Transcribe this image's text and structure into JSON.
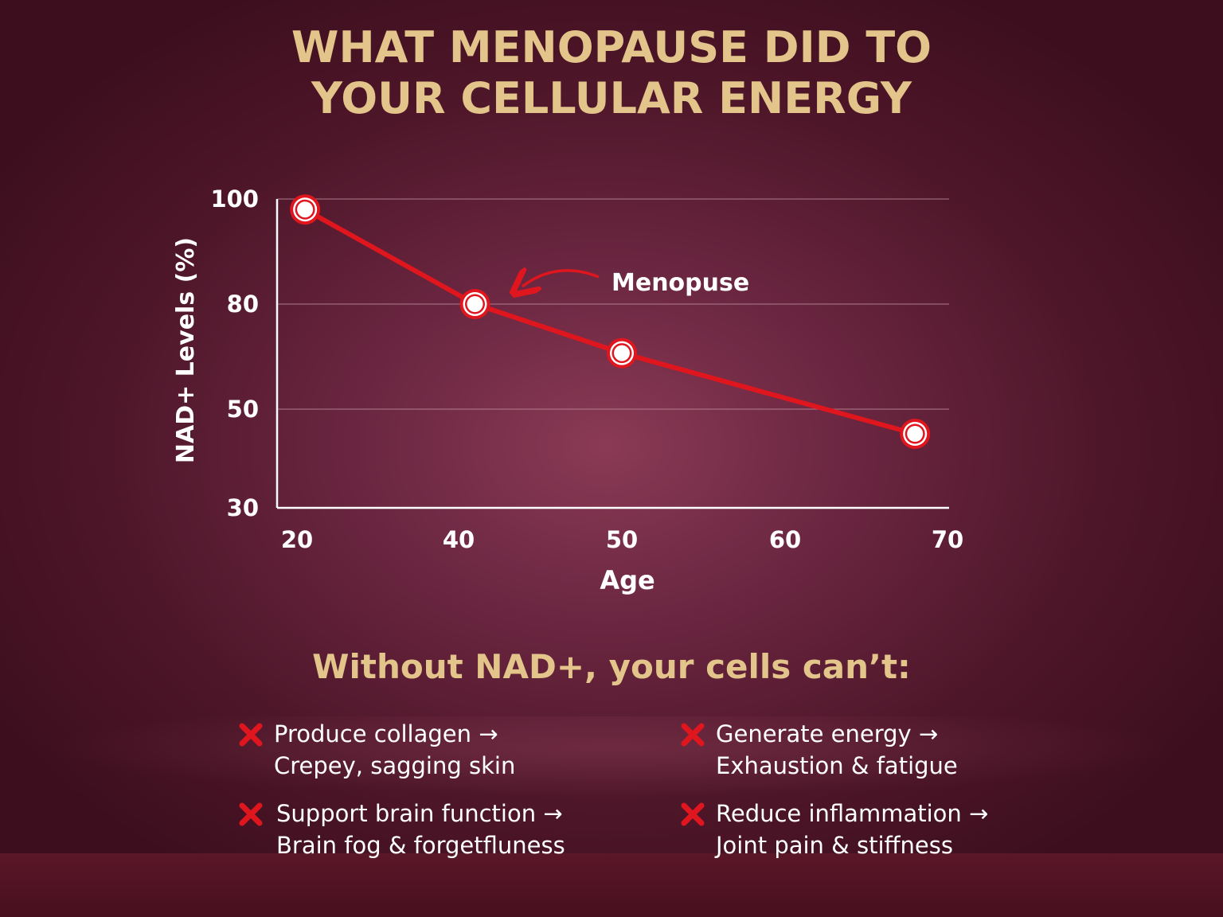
{
  "title": {
    "line1": "WHAT MENOPAUSE DID TO",
    "line2": "YOUR CELLULAR ENERGY"
  },
  "chart_data": {
    "type": "line",
    "ylabel": "NAD+ Levels (%)",
    "xlabel": "Age",
    "x_ticks": [
      "20",
      "40",
      "50",
      "60",
      "70"
    ],
    "y_ticks": [
      "100",
      "80",
      "50",
      "30"
    ],
    "series": [
      {
        "x": [
          21,
          41,
          50,
          68
        ],
        "y": [
          98,
          80,
          66,
          45
        ]
      }
    ],
    "annotation": {
      "text": "Menopuse",
      "points_to_x": 41
    },
    "grid": "horizontal",
    "line_color": "#e0161e"
  },
  "subhead": "Without NAD+, your cells can’t:",
  "items": [
    {
      "line1": "Produce collagen →",
      "line2": "Crepey, sagging skin",
      "icon": "x-mark-icon"
    },
    {
      "line1": "Generate energy →",
      "line2": "Exhaustion & fatigue",
      "icon": "x-mark-icon"
    },
    {
      "line1": "Support brain function →",
      "line2": "Brain fog & forgetfluness",
      "icon": "x-mark-icon"
    },
    {
      "line1": "Reduce inflammation →",
      "line2": "Joint pain & stiffness",
      "icon": "x-mark-icon"
    }
  ],
  "colors": {
    "gold": "#e3c48a",
    "red": "#e0161e"
  }
}
